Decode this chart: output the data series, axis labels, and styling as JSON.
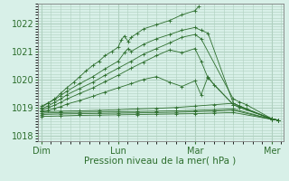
{
  "title": "",
  "xlabel": "Pression niveau de la mer( hPa )",
  "ylabel": "",
  "bg_color": "#d8f0e8",
  "grid_color": "#b0d0c0",
  "line_color": "#2d6e2d",
  "marker_color": "#2d6e2d",
  "ylim": [
    1017.8,
    1022.7
  ],
  "yticks": [
    1018,
    1019,
    1020,
    1021,
    1022
  ],
  "xlim": [
    -0.05,
    3.15
  ],
  "xticks": [
    0.0,
    1.0,
    2.0,
    3.0
  ],
  "xticklabels": [
    "Dim",
    "Lun",
    "Mar",
    "Mer"
  ],
  "series": [
    {
      "x": [
        0.0,
        0.08,
        0.17,
        0.25,
        0.33,
        0.42,
        0.5,
        0.58,
        0.67,
        0.75,
        0.83,
        0.92,
        1.0,
        1.04,
        1.08,
        1.13,
        1.17,
        1.25,
        1.33,
        1.5,
        1.67,
        1.83,
        2.0,
        2.05
      ],
      "y": [
        1019.0,
        1019.15,
        1019.3,
        1019.5,
        1019.7,
        1019.9,
        1020.1,
        1020.3,
        1020.5,
        1020.65,
        1020.85,
        1021.0,
        1021.15,
        1021.4,
        1021.55,
        1021.35,
        1021.5,
        1021.65,
        1021.8,
        1021.95,
        1022.1,
        1022.3,
        1022.45,
        1022.6
      ]
    },
    {
      "x": [
        0.0,
        0.08,
        0.17,
        0.25,
        0.33,
        0.5,
        0.67,
        0.83,
        1.0,
        1.08,
        1.13,
        1.17,
        1.33,
        1.5,
        1.67,
        1.83,
        2.0,
        2.08,
        2.17,
        2.5,
        2.58,
        2.67,
        3.0,
        3.08
      ],
      "y": [
        1019.05,
        1019.15,
        1019.28,
        1019.42,
        1019.58,
        1019.85,
        1020.1,
        1020.38,
        1020.65,
        1020.95,
        1021.1,
        1021.0,
        1021.25,
        1021.45,
        1021.6,
        1021.75,
        1021.85,
        1021.75,
        1021.65,
        1019.15,
        1019.05,
        1018.95,
        1018.6,
        1018.55
      ]
    },
    {
      "x": [
        0.0,
        0.08,
        0.17,
        0.25,
        0.33,
        0.5,
        0.67,
        0.83,
        1.0,
        1.17,
        1.33,
        1.5,
        1.67,
        1.83,
        2.0,
        2.08,
        2.5,
        2.58,
        2.67,
        3.0,
        3.08
      ],
      "y": [
        1018.95,
        1019.05,
        1019.18,
        1019.3,
        1019.45,
        1019.68,
        1019.9,
        1020.15,
        1020.4,
        1020.65,
        1020.9,
        1021.1,
        1021.3,
        1021.5,
        1021.6,
        1021.45,
        1019.3,
        1019.2,
        1019.1,
        1018.6,
        1018.55
      ]
    },
    {
      "x": [
        0.0,
        0.08,
        0.17,
        0.25,
        0.33,
        0.5,
        0.67,
        0.83,
        1.0,
        1.17,
        1.33,
        1.5,
        1.67,
        1.83,
        2.0,
        2.08,
        2.17,
        2.5,
        2.58,
        3.0,
        3.08
      ],
      "y": [
        1018.9,
        1018.98,
        1019.08,
        1019.18,
        1019.3,
        1019.5,
        1019.7,
        1019.92,
        1020.15,
        1020.4,
        1020.62,
        1020.85,
        1021.05,
        1020.95,
        1021.1,
        1020.65,
        1020.05,
        1019.1,
        1019.0,
        1018.6,
        1018.55
      ]
    },
    {
      "x": [
        0.0,
        0.08,
        0.17,
        0.25,
        0.33,
        0.5,
        0.67,
        0.83,
        1.0,
        1.17,
        1.33,
        1.5,
        1.67,
        1.83,
        2.0,
        2.08,
        2.17,
        2.25,
        2.5,
        3.0,
        3.08
      ],
      "y": [
        1018.85,
        1018.9,
        1018.97,
        1019.03,
        1019.12,
        1019.25,
        1019.4,
        1019.55,
        1019.7,
        1019.85,
        1020.0,
        1020.1,
        1019.9,
        1019.75,
        1019.95,
        1019.45,
        1020.1,
        1019.8,
        1019.1,
        1018.6,
        1018.55
      ]
    },
    {
      "x": [
        0.0,
        0.25,
        0.5,
        0.75,
        1.0,
        1.25,
        1.5,
        1.75,
        2.0,
        2.25,
        2.5,
        3.0,
        3.08
      ],
      "y": [
        1018.85,
        1018.87,
        1018.88,
        1018.9,
        1018.92,
        1018.95,
        1018.97,
        1019.0,
        1019.05,
        1019.1,
        1019.15,
        1018.58,
        1018.55
      ]
    },
    {
      "x": [
        0.0,
        0.25,
        0.5,
        0.75,
        1.0,
        1.25,
        1.5,
        1.75,
        2.0,
        2.25,
        2.5,
        3.0,
        3.08
      ],
      "y": [
        1018.8,
        1018.82,
        1018.83,
        1018.84,
        1018.85,
        1018.86,
        1018.87,
        1018.88,
        1018.9,
        1018.92,
        1018.95,
        1018.58,
        1018.55
      ]
    },
    {
      "x": [
        0.0,
        0.25,
        0.5,
        0.75,
        1.0,
        1.25,
        1.5,
        1.75,
        2.0,
        2.25,
        2.5,
        3.0,
        3.08
      ],
      "y": [
        1018.75,
        1018.77,
        1018.78,
        1018.79,
        1018.8,
        1018.81,
        1018.82,
        1018.83,
        1018.85,
        1018.87,
        1018.9,
        1018.58,
        1018.55
      ]
    },
    {
      "x": [
        0.0,
        0.25,
        0.5,
        0.75,
        1.0,
        1.25,
        1.5,
        1.75,
        2.0,
        2.25,
        2.5,
        3.0,
        3.08
      ],
      "y": [
        1018.68,
        1018.7,
        1018.72,
        1018.73,
        1018.74,
        1018.75,
        1018.76,
        1018.77,
        1018.78,
        1018.8,
        1018.82,
        1018.58,
        1018.55
      ]
    }
  ]
}
